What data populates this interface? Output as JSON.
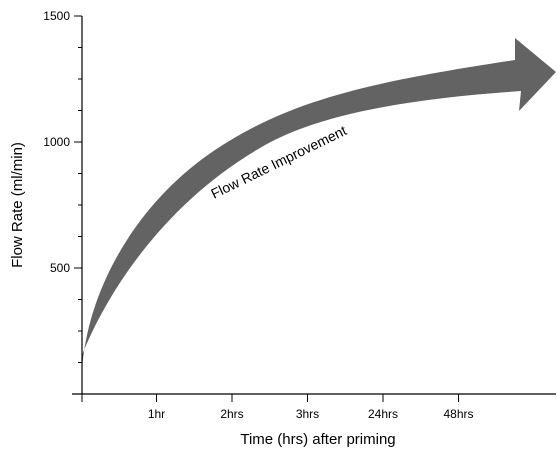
{
  "chart_data": {
    "type": "area",
    "title": "",
    "xlabel": "Time (hrs) after priming",
    "ylabel": "Flow Rate (ml/min)",
    "ylim": [
      0,
      1500
    ],
    "y_ticks": [
      {
        "value": 500,
        "label": "500"
      },
      {
        "value": 1000,
        "label": "1000"
      },
      {
        "value": 1500,
        "label": "1500"
      }
    ],
    "x_ticks": [
      "1hr",
      "2hrs",
      "3hrs",
      "24hrs",
      "48hrs"
    ],
    "annotation": "Flow Rate Improvement",
    "arrow_color": "#636363"
  }
}
